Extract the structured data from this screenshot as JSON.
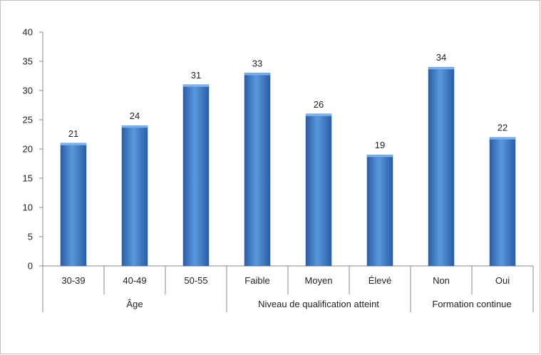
{
  "chart_data": {
    "type": "bar",
    "title": "",
    "xlabel": "",
    "ylabel": "",
    "ylim": [
      0,
      40
    ],
    "yticks": [
      0,
      5,
      10,
      15,
      20,
      25,
      30,
      35,
      40
    ],
    "grid": false,
    "legend": "none",
    "bar_color": "#3a78c8",
    "categories": [
      "30-39",
      "40-49",
      "50-55",
      "Faible",
      "Moyen",
      "Élevé",
      "Non",
      "Oui"
    ],
    "values": [
      21,
      24,
      31,
      33,
      26,
      19,
      34,
      22
    ],
    "groups": [
      {
        "label": "Âge",
        "categories": [
          "30-39",
          "40-49",
          "50-55"
        ]
      },
      {
        "label": "Niveau de qualification atteint",
        "categories": [
          "Faible",
          "Moyen",
          "Élevé"
        ]
      },
      {
        "label": "Formation continue",
        "categories": [
          "Non",
          "Oui"
        ]
      }
    ]
  }
}
